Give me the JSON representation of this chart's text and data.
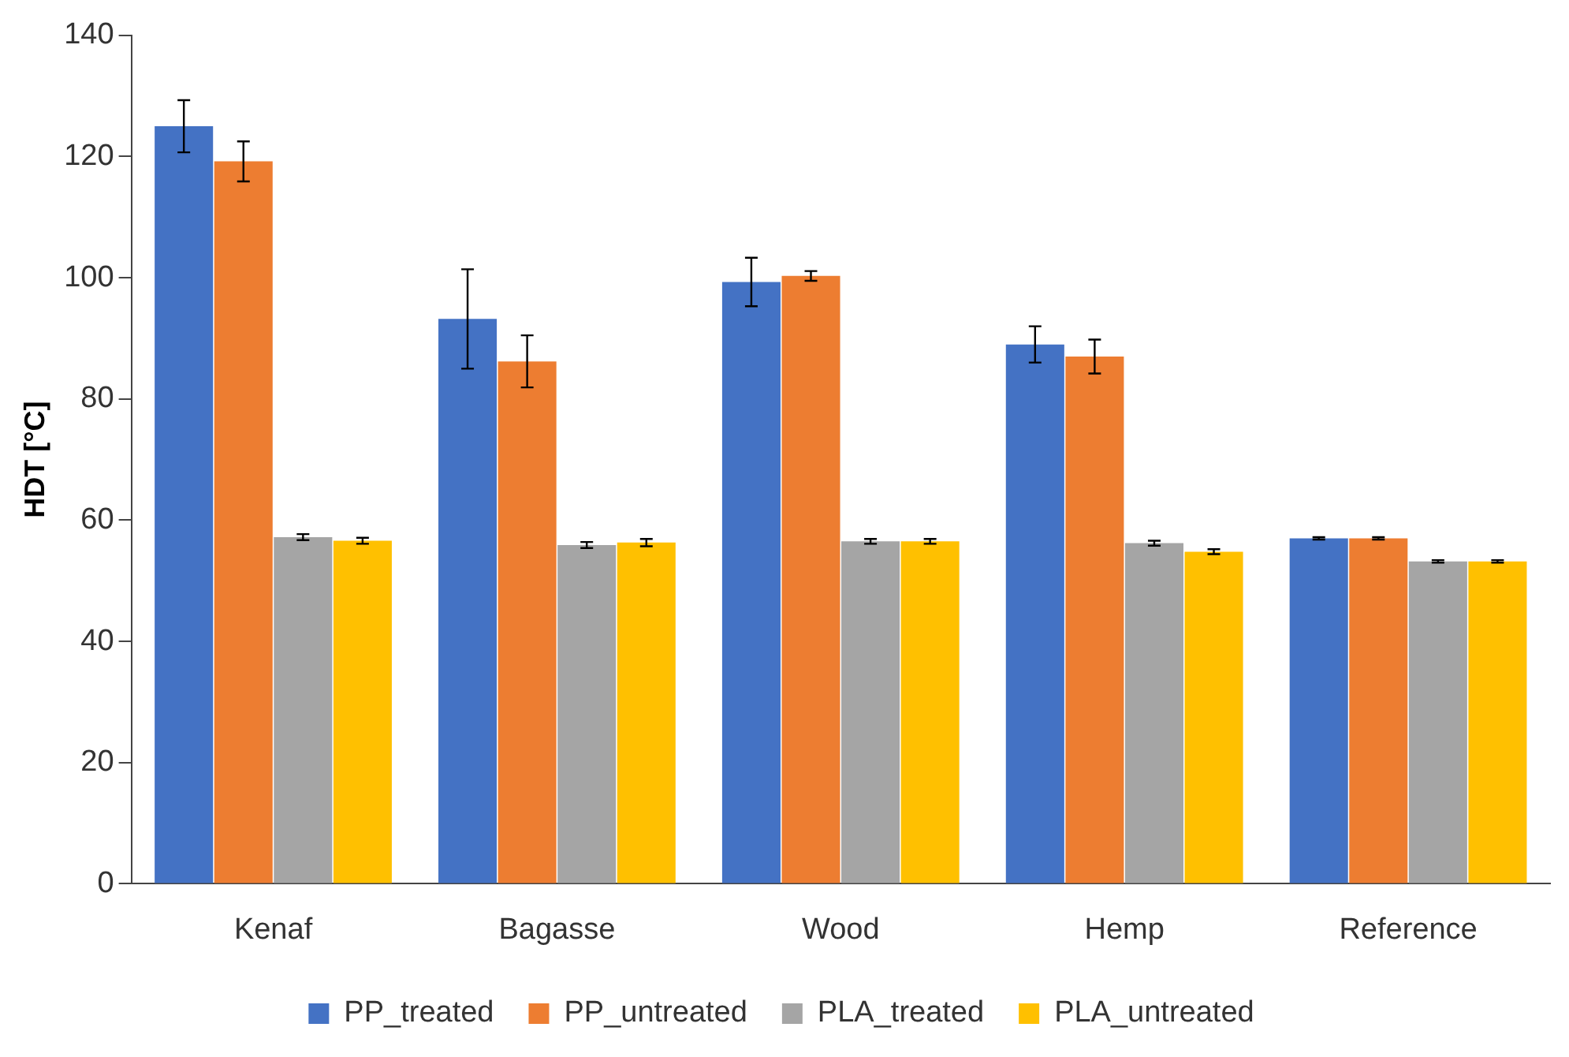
{
  "chart_data": {
    "type": "bar",
    "ylabel": "HDT [°C]",
    "categories": [
      "Kenaf",
      "Bagasse",
      "Wood",
      "Hemp",
      "Reference"
    ],
    "series": [
      {
        "name": "PP_treated",
        "color": "#4472c4",
        "values": [
          125,
          93.2,
          99.3,
          89,
          57
        ],
        "errors": [
          4.3,
          8.2,
          4,
          3,
          0.2
        ]
      },
      {
        "name": "PP_untreated",
        "color": "#ed7d31",
        "values": [
          119.2,
          86.2,
          100.3,
          87,
          57
        ],
        "errors": [
          3.3,
          4.3,
          0.8,
          2.8,
          0.2
        ]
      },
      {
        "name": "PLA_treated",
        "color": "#a5a5a5",
        "values": [
          57.2,
          55.9,
          56.5,
          56.2,
          53.2
        ],
        "errors": [
          0.5,
          0.5,
          0.4,
          0.4,
          0.2
        ]
      },
      {
        "name": "PLA_untreated",
        "color": "#ffc000",
        "values": [
          56.6,
          56.3,
          56.5,
          54.8,
          53.2
        ],
        "errors": [
          0.5,
          0.6,
          0.4,
          0.4,
          0.2
        ]
      }
    ],
    "ylim": [
      0,
      140
    ],
    "yticks": [
      0,
      20,
      40,
      60,
      80,
      100,
      120,
      140
    ],
    "grid": false,
    "legend": "bottom"
  }
}
